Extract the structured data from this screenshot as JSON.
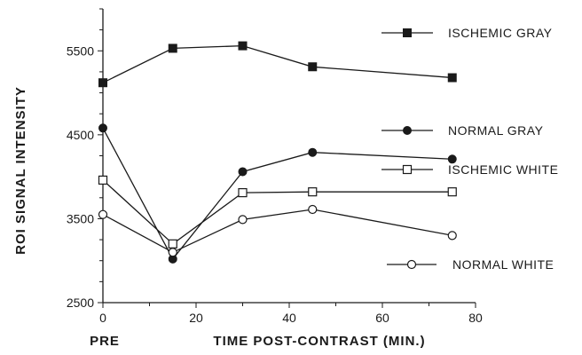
{
  "chart_data": {
    "type": "line",
    "title": "",
    "xlabel": "TIME POST-CONTRAST (MIN.)",
    "ylabel": "ROI SIGNAL INTENSITY",
    "x_pre_label": "PRE",
    "xlim": [
      0,
      80
    ],
    "ylim": [
      2500,
      6000
    ],
    "xticks": [
      "0",
      "20",
      "40",
      "60",
      "80"
    ],
    "yticks": [
      "2500",
      "3500",
      "4500",
      "5500"
    ],
    "grid": false,
    "legend_position": "right",
    "x": [
      0,
      15,
      30,
      45,
      75
    ],
    "series": [
      {
        "name": "ISCHEMIC GRAY",
        "marker": "filled-square",
        "values": [
          5120,
          5530,
          5560,
          5310,
          5180
        ]
      },
      {
        "name": "NORMAL GRAY",
        "marker": "filled-circle",
        "values": [
          4580,
          3020,
          4060,
          4290,
          4210
        ]
      },
      {
        "name": "ISCHEMIC WHITE",
        "marker": "open-square",
        "values": [
          3960,
          3200,
          3810,
          3820,
          3820
        ]
      },
      {
        "name": "NORMAL WHITE",
        "marker": "open-circle",
        "values": [
          3550,
          3100,
          3490,
          3610,
          3300
        ]
      }
    ]
  }
}
